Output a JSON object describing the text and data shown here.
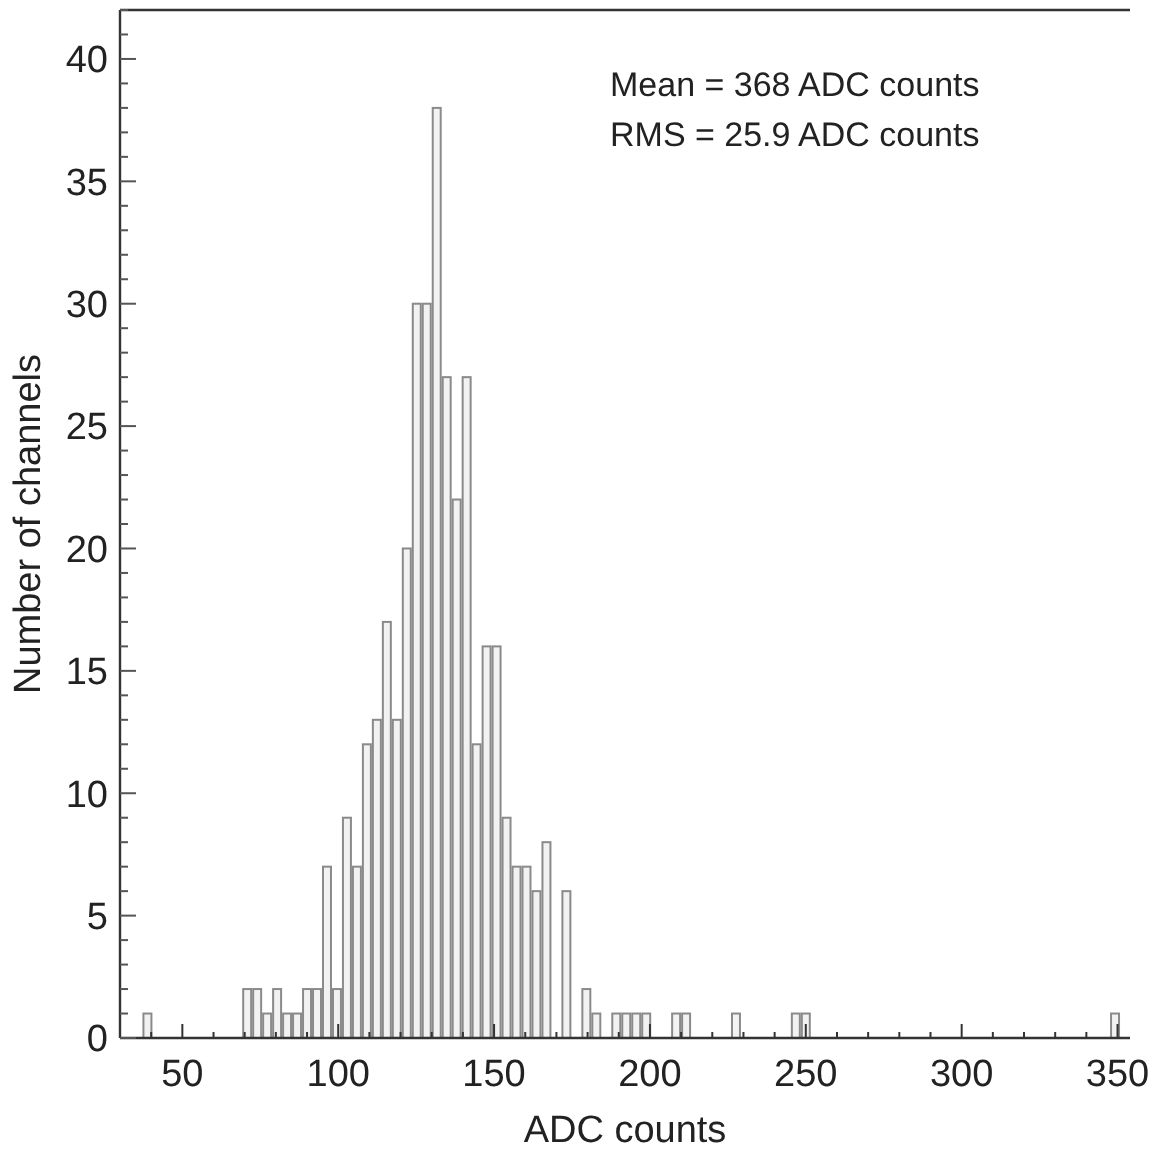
{
  "chart_data": {
    "type": "histogram",
    "xlabel": "ADC counts",
    "ylabel": "Number of channels",
    "color": "#8a8a8a",
    "annotations": [
      "Mean = 368 ADC counts",
      "RMS = 25.9 ADC counts"
    ],
    "bins": [
      34,
      37.2,
      40.4,
      43.6,
      46.8,
      50,
      53.2,
      56.4,
      59.6,
      62.8,
      66,
      69.2,
      72.4,
      75.6,
      78.8,
      82,
      85.2,
      88.4,
      91.6,
      94.8,
      98,
      101.2,
      104.4,
      107.6,
      110.8,
      114,
      117.2,
      120.4,
      123.6,
      126.8,
      130,
      133.2,
      136.4,
      139.6,
      142.8,
      146,
      149.2,
      152.4,
      155.6,
      158.8,
      162,
      165.2,
      168.4,
      171.6,
      174.8,
      178,
      181.2,
      184.4,
      187.6,
      190.8,
      194,
      197.2,
      200.4,
      203.6,
      206.8,
      210,
      213.2,
      216.4,
      219.6,
      222.8,
      226,
      229.2,
      232.4,
      235.6,
      238.8,
      242,
      245.2,
      248.4,
      251.6,
      254.8,
      258,
      261.2,
      264.4,
      267.6,
      270.8,
      274,
      277.2,
      280.4,
      283.6,
      286.8,
      290,
      293.2,
      296.4,
      299.6,
      302.8,
      306,
      309.2,
      312.4,
      315.6,
      318.8,
      322,
      325.2,
      328.4,
      331.6,
      334.8,
      338,
      341.2,
      344.4,
      347.6,
      350.8,
      354
    ],
    "values": [
      0,
      1,
      0,
      0,
      0,
      0,
      0,
      0,
      0,
      0,
      0,
      2,
      2,
      1,
      2,
      1,
      1,
      2,
      2,
      7,
      2,
      9,
      7,
      12,
      13,
      17,
      13,
      20,
      30,
      30,
      38,
      27,
      22,
      27,
      12,
      16,
      16,
      9,
      7,
      7,
      6,
      8,
      0,
      6,
      0,
      2,
      1,
      0,
      1,
      1,
      1,
      1,
      0,
      0,
      1,
      1,
      0,
      0,
      0,
      0,
      1,
      0,
      0,
      0,
      0,
      0,
      1,
      1,
      0,
      0,
      0,
      0,
      0,
      0,
      0,
      0,
      0,
      0,
      0,
      0,
      0,
      0,
      0,
      0,
      0,
      0,
      0,
      0,
      0,
      0,
      0,
      0,
      0,
      0,
      0,
      0,
      0,
      0,
      1,
      0
    ],
    "xlim": [
      30,
      354
    ],
    "xticks": [
      {
        "value": 40,
        "label": null
      },
      50,
      {
        "value": 60,
        "label": null
      },
      {
        "value": 70,
        "label": null
      },
      {
        "value": 80,
        "label": null
      },
      {
        "value": 90,
        "label": null
      },
      100,
      {
        "value": 110,
        "label": null
      },
      {
        "value": 120,
        "label": null
      },
      {
        "value": 130,
        "label": null
      },
      {
        "value": 140,
        "label": null
      },
      150,
      {
        "value": 160,
        "label": null
      },
      {
        "value": 170,
        "label": null
      },
      {
        "value": 180,
        "label": null
      },
      {
        "value": 190,
        "label": null
      },
      200,
      {
        "value": 210,
        "label": null
      },
      {
        "value": 220,
        "label": null
      },
      {
        "value": 230,
        "label": null
      },
      {
        "value": 240,
        "label": null
      },
      250,
      {
        "value": 260,
        "label": null
      },
      {
        "value": 270,
        "label": null
      },
      {
        "value": 280,
        "label": null
      },
      {
        "value": 290,
        "label": null
      },
      300,
      {
        "value": 310,
        "label": null
      },
      {
        "value": 320,
        "label": null
      },
      {
        "value": 330,
        "label": null
      },
      {
        "value": 340,
        "label": null
      },
      350
    ],
    "ylim": [
      0,
      42
    ],
    "yticks": [
      0,
      {
        "value": 1,
        "label": null
      },
      {
        "value": 2,
        "label": null
      },
      {
        "value": 3,
        "label": null
      },
      {
        "value": 4,
        "label": null
      },
      5,
      {
        "value": 6,
        "label": null
      },
      {
        "value": 7,
        "label": null
      },
      {
        "value": 8,
        "label": null
      },
      {
        "value": 9,
        "label": null
      },
      10,
      {
        "value": 11,
        "label": null
      },
      {
        "value": 12,
        "label": null
      },
      {
        "value": 13,
        "label": null
      },
      {
        "value": 14,
        "label": null
      },
      15,
      {
        "value": 16,
        "label": null
      },
      {
        "value": 17,
        "label": null
      },
      {
        "value": 18,
        "label": null
      },
      {
        "value": 19,
        "label": null
      },
      20,
      {
        "value": 21,
        "label": null
      },
      {
        "value": 22,
        "label": null
      },
      {
        "value": 23,
        "label": null
      },
      {
        "value": 24,
        "label": null
      },
      25,
      {
        "value": 26,
        "label": null
      },
      {
        "value": 27,
        "label": null
      },
      {
        "value": 28,
        "label": null
      },
      {
        "value": 29,
        "label": null
      },
      30,
      {
        "value": 31,
        "label": null
      },
      {
        "value": 32,
        "label": null
      },
      {
        "value": 33,
        "label": null
      },
      {
        "value": 34,
        "label": null
      },
      35,
      {
        "value": 36,
        "label": null
      },
      {
        "value": 37,
        "label": null
      },
      {
        "value": 38,
        "label": null
      },
      {
        "value": 39,
        "label": null
      },
      40,
      {
        "value": 41,
        "label": null
      },
      {
        "value": 42,
        "label": null
      }
    ],
    "grid": false
  }
}
